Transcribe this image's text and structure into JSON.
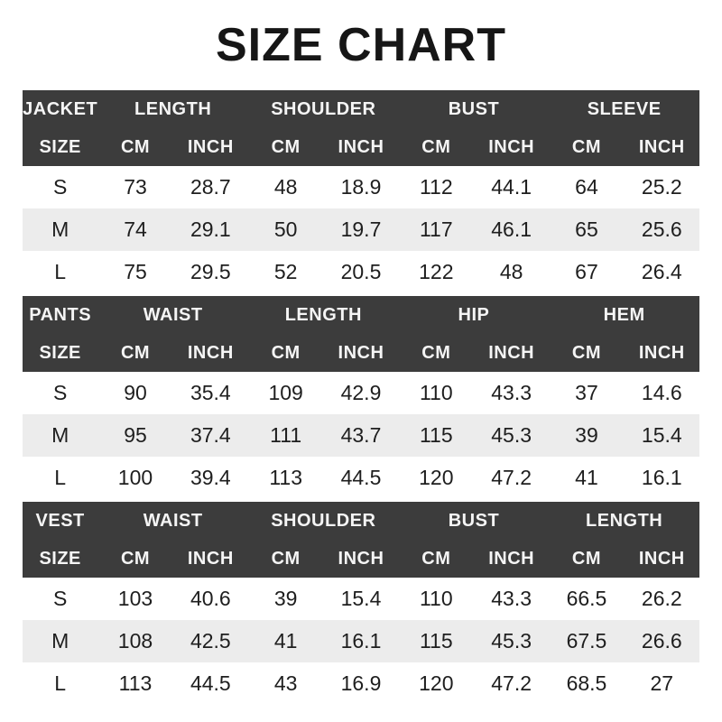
{
  "page": {
    "title": "SIZE CHART"
  },
  "colors": {
    "header_bg": "#3c3c3c",
    "header_text": "#f5f5f5",
    "row_alt_bg": "#ececec",
    "row_bg": "#ffffff",
    "data_text": "#1e1e1e",
    "title_text": "#161616"
  },
  "tables": [
    {
      "category_label": "JACKET",
      "size_label": "SIZE",
      "measure_groups": [
        "LENGTH",
        "SHOULDER",
        "BUST",
        "SLEEVE"
      ],
      "unit_labels": [
        "CM",
        "INCH",
        "CM",
        "INCH",
        "CM",
        "INCH",
        "CM",
        "INCH"
      ],
      "rows": [
        {
          "size": "S",
          "values": [
            "73",
            "28.7",
            "48",
            "18.9",
            "112",
            "44.1",
            "64",
            "25.2"
          ]
        },
        {
          "size": "M",
          "values": [
            "74",
            "29.1",
            "50",
            "19.7",
            "117",
            "46.1",
            "65",
            "25.6"
          ]
        },
        {
          "size": "L",
          "values": [
            "75",
            "29.5",
            "52",
            "20.5",
            "122",
            "48",
            "67",
            "26.4"
          ]
        }
      ]
    },
    {
      "category_label": "PANTS",
      "size_label": "SIZE",
      "measure_groups": [
        "WAIST",
        "LENGTH",
        "HIP",
        "HEM"
      ],
      "unit_labels": [
        "CM",
        "INCH",
        "CM",
        "INCH",
        "CM",
        "INCH",
        "CM",
        "INCH"
      ],
      "rows": [
        {
          "size": "S",
          "values": [
            "90",
            "35.4",
            "109",
            "42.9",
            "110",
            "43.3",
            "37",
            "14.6"
          ]
        },
        {
          "size": "M",
          "values": [
            "95",
            "37.4",
            "111",
            "43.7",
            "115",
            "45.3",
            "39",
            "15.4"
          ]
        },
        {
          "size": "L",
          "values": [
            "100",
            "39.4",
            "113",
            "44.5",
            "120",
            "47.2",
            "41",
            "16.1"
          ]
        }
      ]
    },
    {
      "category_label": "VEST",
      "size_label": "SIZE",
      "measure_groups": [
        "WAIST",
        "SHOULDER",
        "BUST",
        "LENGTH"
      ],
      "unit_labels": [
        "CM",
        "INCH",
        "CM",
        "INCH",
        "CM",
        "INCH",
        "CM",
        "INCH"
      ],
      "rows": [
        {
          "size": "S",
          "values": [
            "103",
            "40.6",
            "39",
            "15.4",
            "110",
            "43.3",
            "66.5",
            "26.2"
          ]
        },
        {
          "size": "M",
          "values": [
            "108",
            "42.5",
            "41",
            "16.1",
            "115",
            "45.3",
            "67.5",
            "26.6"
          ]
        },
        {
          "size": "L",
          "values": [
            "113",
            "44.5",
            "43",
            "16.9",
            "120",
            "47.2",
            "68.5",
            "27"
          ]
        }
      ]
    }
  ]
}
